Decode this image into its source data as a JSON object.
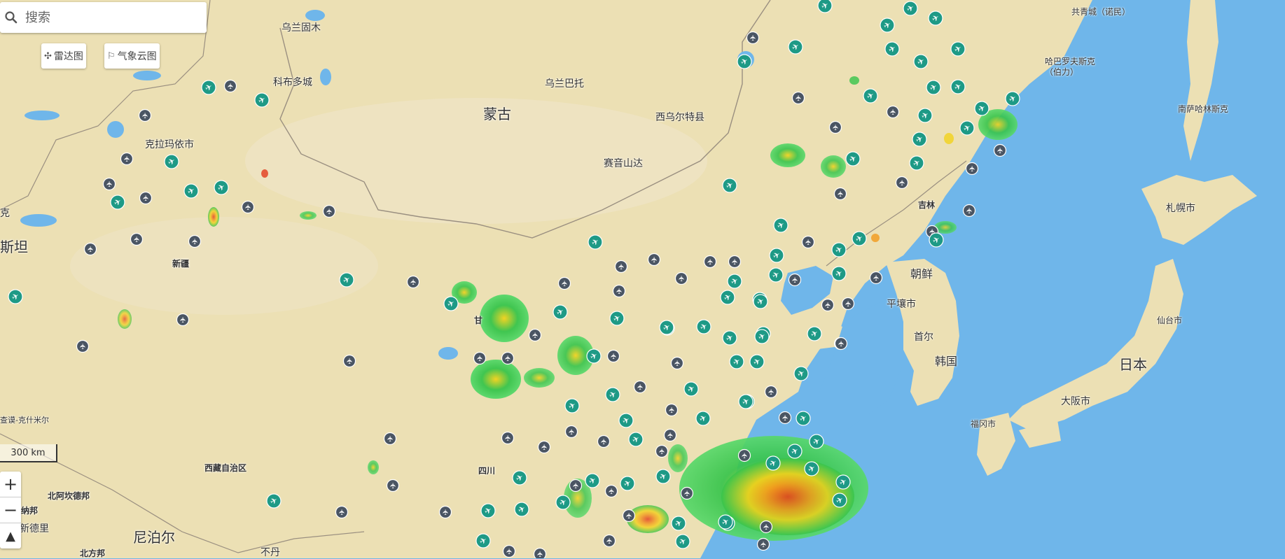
{
  "search": {
    "placeholder": "搜索"
  },
  "toolbar": {
    "radar_label": "雷达图",
    "radar_icon": "move-arrows-icon",
    "cloud_label": "气象云图",
    "cloud_icon": "flag-icon"
  },
  "scale": {
    "label": "300 km"
  },
  "zoom": {
    "in": "+",
    "out": "−",
    "north": "▲"
  },
  "colors": {
    "sea": "#6fb6ea",
    "land": "#ece0b4",
    "airport_green": "#1e9a86",
    "airport_gray": "#4a5563",
    "radar_green": "#37c44b",
    "radar_yellow": "#f2d21b",
    "radar_red": "#e23a1c"
  },
  "labels": {
    "mongolia": "蒙古",
    "japan": "日本",
    "korea": "韩国",
    "dprk": "朝鲜",
    "nepal": "尼泊尔",
    "ulaanbaatar": "乌兰巴托",
    "ulaangom": "乌兰固木",
    "khovd": "科布多城",
    "west_urt": "西乌尔特县",
    "sainshand": "赛音山达",
    "karamay": "克拉玛依市",
    "xinjiang": "新疆",
    "tibet": "西藏自治区",
    "sichuan": "四川",
    "jilin": "吉林",
    "pyongyang": "平壤市",
    "seoul": "首尔",
    "osaka": "大阪市",
    "fukuoka": "福冈市",
    "sendai": "仙台市",
    "sapporo": "札幌市",
    "yuzhno": "南萨哈林斯克",
    "khabarovsk": "哈巴罗夫斯克（伯力）",
    "gongqing": "共青城（诺民）",
    "north_khand": "北阿坎德邦",
    "delhi": "新德里",
    "bhutan": "不丹",
    "north_region": "北方邦",
    "kazakh_edge": "斯坦",
    "kazakh_edge2": "克",
    "kashmir": "查谟-克什米尔",
    "gansu_edge": "甘",
    "haryana": "纳邦"
  }
}
